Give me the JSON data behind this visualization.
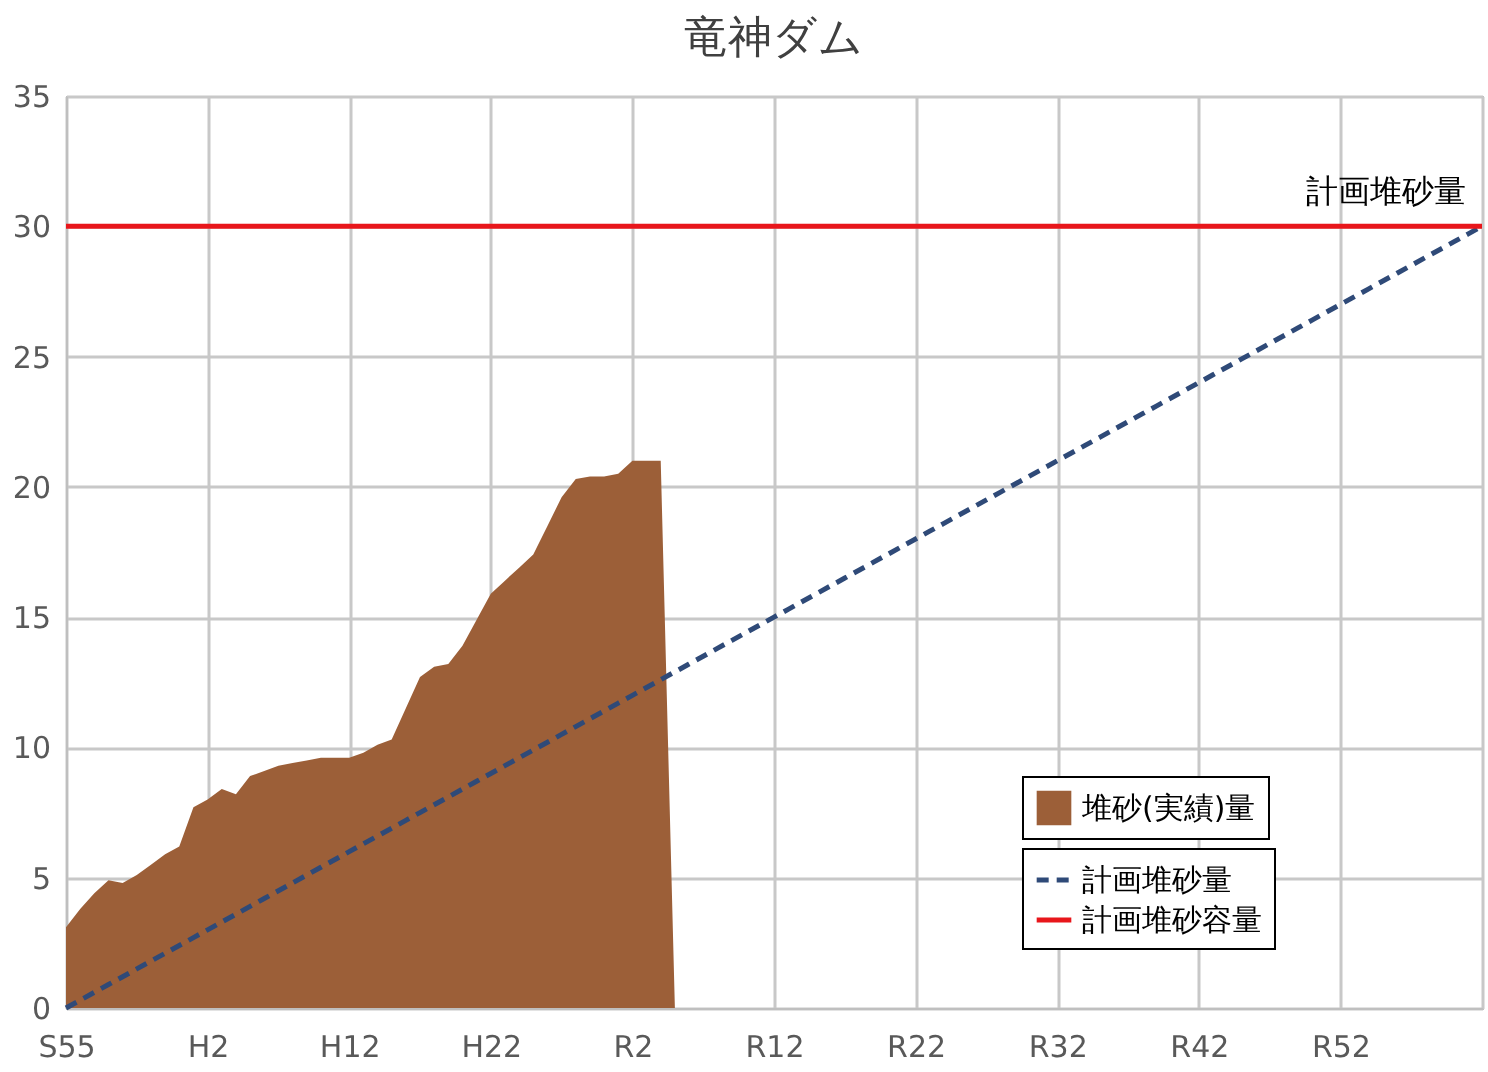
{
  "chart_data": {
    "type": "area",
    "title": "竜神ダム",
    "categories": [
      "S55",
      null,
      null,
      null,
      null,
      null,
      null,
      null,
      null,
      null,
      "H2",
      null,
      null,
      null,
      null,
      null,
      null,
      null,
      null,
      null,
      "H12",
      null,
      null,
      null,
      null,
      null,
      null,
      null,
      null,
      null,
      "H22",
      null,
      null,
      null,
      null,
      null,
      null,
      null,
      null,
      null,
      "R2",
      null,
      null,
      null,
      null,
      null,
      null,
      null,
      null,
      null,
      "R12",
      null,
      null,
      null,
      null,
      null,
      null,
      null,
      null,
      null,
      "R22",
      null,
      null,
      null,
      null,
      null,
      null,
      null,
      null,
      null,
      "R32",
      null,
      null,
      null,
      null,
      null,
      null,
      null,
      null,
      null,
      "R42",
      null,
      null,
      null,
      null,
      null,
      null,
      null,
      null,
      null,
      "R52",
      null,
      null,
      null,
      null,
      null,
      null,
      null,
      null,
      null,
      null
    ],
    "ylim": [
      0,
      35
    ],
    "yticks": [
      0,
      5,
      10,
      15,
      20,
      25,
      30,
      35
    ],
    "grid": true,
    "legend": "bottom right",
    "series": [
      {
        "name": "堆砂(実績)量",
        "color": "#9c5f38",
        "values": [
          3.1,
          3.8,
          4.4,
          4.9,
          4.8,
          5.1,
          5.5,
          5.9,
          6.2,
          7.7,
          8.0,
          8.4,
          8.2,
          8.9,
          9.1,
          9.3,
          9.4,
          9.5,
          9.6,
          9.6,
          9.6,
          9.8,
          10.1,
          10.3,
          11.5,
          12.7,
          13.1,
          13.2,
          13.9,
          14.9,
          15.9,
          16.4,
          16.9,
          17.4,
          18.5,
          19.6,
          20.3,
          20.4,
          20.4,
          20.5,
          21.0,
          21.0,
          21.0,
          0,
          null,
          null,
          null,
          null,
          null,
          null,
          null,
          null,
          null,
          null,
          null,
          null,
          null,
          null,
          null,
          null,
          null,
          null,
          null,
          null,
          null,
          null,
          null,
          null,
          null,
          null,
          null,
          null,
          null,
          null,
          null,
          null,
          null,
          null,
          null,
          null,
          null,
          null,
          null,
          null,
          null,
          null,
          null,
          null,
          null,
          null,
          null,
          null,
          null,
          null,
          null,
          null,
          null,
          null,
          null,
          null,
          null
        ]
      },
      {
        "name": "計画堆砂量",
        "type": "line",
        "line_style": "dashed",
        "color": "#2f4a78",
        "values": [
          0,
          0.3,
          0.6,
          0.9,
          1.2,
          1.5,
          1.8,
          2.1,
          2.4,
          2.7,
          3,
          3.3,
          3.6,
          3.9,
          4.2,
          4.5,
          4.8,
          5.1,
          5.4,
          5.7,
          6,
          6.3,
          6.6,
          6.9,
          7.2,
          7.5,
          7.8,
          8.1,
          8.4,
          8.7,
          9,
          9.3,
          9.6,
          9.9,
          10.2,
          10.5,
          10.8,
          11.1,
          11.4,
          11.7,
          12,
          12.3,
          12.6,
          12.9,
          13.2,
          13.5,
          13.8,
          14.1,
          14.4,
          14.7,
          15,
          15.3,
          15.6,
          15.9,
          16.2,
          16.5,
          16.8,
          17.1,
          17.4,
          17.7,
          18,
          18.3,
          18.6,
          18.9,
          19.2,
          19.5,
          19.8,
          20.1,
          20.4,
          20.7,
          21,
          21.3,
          21.6,
          21.9,
          22.2,
          22.5,
          22.8,
          23.1,
          23.4,
          23.7,
          24,
          24.3,
          24.6,
          24.9,
          25.2,
          25.5,
          25.8,
          26.1,
          26.4,
          26.7,
          27,
          27.3,
          27.6,
          27.9,
          28.2,
          28.5,
          28.8,
          29.1,
          29.4,
          29.7,
          30
        ]
      },
      {
        "name": "計画堆砂容量",
        "type": "line",
        "line_style": "solid",
        "color": "#e8161b",
        "values": [
          30,
          30,
          30,
          30,
          30,
          30,
          30,
          30,
          30,
          30,
          30,
          30,
          30,
          30,
          30,
          30,
          30,
          30,
          30,
          30,
          30,
          30,
          30,
          30,
          30,
          30,
          30,
          30,
          30,
          30,
          30,
          30,
          30,
          30,
          30,
          30,
          30,
          30,
          30,
          30,
          30,
          30,
          30,
          30,
          30,
          30,
          30,
          30,
          30,
          30,
          30,
          30,
          30,
          30,
          30,
          30,
          30,
          30,
          30,
          30,
          30,
          30,
          30,
          30,
          30,
          30,
          30,
          30,
          30,
          30,
          30,
          30,
          30,
          30,
          30,
          30,
          30,
          30,
          30,
          30,
          30,
          30,
          30,
          30,
          30,
          30,
          30,
          30,
          30,
          30,
          30,
          30,
          30,
          30,
          30,
          30,
          30,
          30,
          30,
          30,
          30
        ]
      }
    ],
    "annotations": [
      {
        "text": "計画堆砂量",
        "y": 30
      }
    ]
  }
}
